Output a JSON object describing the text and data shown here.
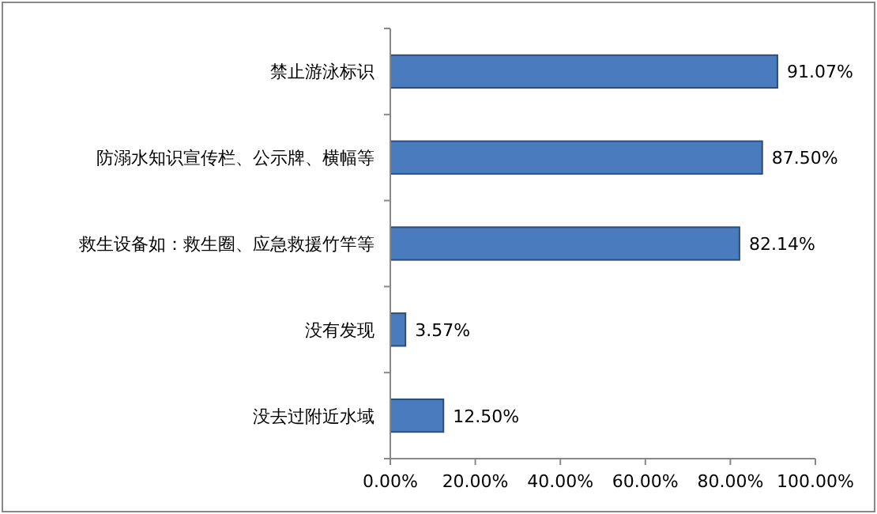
{
  "chart_data": {
    "type": "bar",
    "orientation": "horizontal",
    "categories": [
      "禁止游泳标识",
      "防溺水知识宣传栏、公示牌、横幅等",
      "救生设备如：救生圈、应急救援竹竿等",
      "没有发现",
      "没去过附近水域"
    ],
    "values": [
      91.07,
      87.5,
      82.14,
      3.57,
      12.5
    ],
    "color": "#4a7bbf",
    "data_labels": true,
    "value_labels": [
      "91.07%",
      "87.50%",
      "82.14%",
      "3.57%",
      "12.50%"
    ],
    "xlim": [
      0,
      100
    ],
    "xticks": [
      {
        "value": 0,
        "label": "0.00%"
      },
      {
        "value": 20,
        "label": "20.00%"
      },
      {
        "value": 40,
        "label": "40.00%"
      },
      {
        "value": 60,
        "label": "60.00%"
      },
      {
        "value": 80,
        "label": "80.00%"
      },
      {
        "value": 100,
        "label": "100.00%"
      }
    ],
    "grid": false
  }
}
